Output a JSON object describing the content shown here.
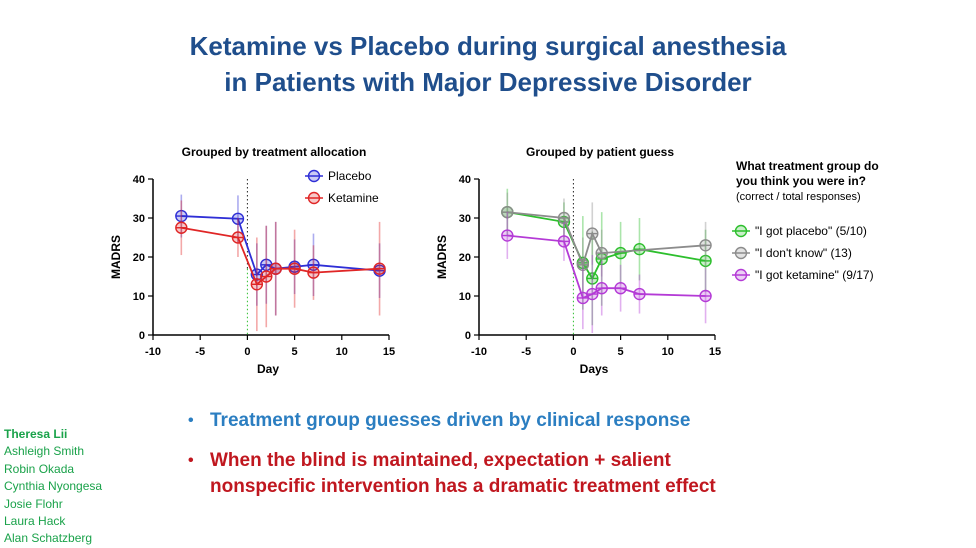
{
  "slide": {
    "title_line1": "Ketamine vs Placebo during surgical anesthesia",
    "title_line2": "in Patients with Major Depressive Disorder",
    "colors": {
      "title": "#1f4e8c",
      "bullet1": "#2b7ec1",
      "bullet2": "#c0171f",
      "authors": "#1aa24a"
    }
  },
  "bullets": [
    {
      "text": "Treatment group guesses driven by clinical response"
    },
    {
      "text_line1": "When the blind is maintained, expectation + salient",
      "text_line2": "nonspecific intervention has a dramatic treatment effect"
    }
  ],
  "authors": [
    "Theresa Lii",
    "Ashleigh Smith",
    "Robin Okada",
    "Cynthia Nyongesa",
    "Josie Flohr",
    "Laura Hack",
    "Alan Schatzberg"
  ],
  "chart_data": [
    {
      "type": "line",
      "title": "Grouped by treatment allocation",
      "xlabel": "Day",
      "ylabel": "MADRS",
      "xlim": [
        -10,
        15
      ],
      "ylim": [
        0,
        40
      ],
      "xticks": [
        -10,
        -5,
        0,
        5,
        10,
        15
      ],
      "yticks": [
        0,
        10,
        20,
        30,
        40
      ],
      "reference_line_x": 0,
      "legend_title": [],
      "legend_position": "top-right",
      "series": [
        {
          "name": "Placebo",
          "color": "#2f2fd6",
          "x": [
            -7,
            -1,
            1,
            2,
            3,
            5,
            7,
            14
          ],
          "y": [
            30.5,
            29.8,
            15.5,
            18,
            17,
            17.5,
            18,
            16.5
          ],
          "err": [
            5.5,
            6,
            8,
            10,
            12,
            7,
            8,
            7
          ]
        },
        {
          "name": "Ketamine",
          "color": "#e02626",
          "x": [
            -7,
            -1,
            1,
            2,
            3,
            5,
            7,
            14
          ],
          "y": [
            27.5,
            25,
            13,
            15,
            17,
            17,
            16,
            17
          ],
          "err": [
            7,
            5,
            12,
            13,
            12,
            10,
            7,
            12
          ]
        }
      ]
    },
    {
      "type": "line",
      "title": "Grouped by patient guess",
      "xlabel": "Days",
      "ylabel": "MADRS",
      "xlim": [
        -10,
        15
      ],
      "ylim": [
        0,
        40
      ],
      "xticks": [
        -10,
        -5,
        0,
        5,
        10,
        15
      ],
      "yticks": [
        0,
        10,
        20,
        30,
        40
      ],
      "reference_line_x": 0,
      "legend_title": [
        "What treatment group do",
        "you think you were in?",
        "(correct / total responses)"
      ],
      "legend_position": "right",
      "series": [
        {
          "name": "\"I got placebo\" (5/10)",
          "color": "#2dbf2d",
          "x": [
            -7,
            -1,
            1,
            2,
            3,
            5,
            7,
            14
          ],
          "y": [
            31.5,
            29,
            18.5,
            14.5,
            19.5,
            21,
            22,
            19
          ],
          "err": [
            6,
            5,
            12,
            12,
            12,
            8,
            8,
            8
          ]
        },
        {
          "name": "\"I don't know\" (13)",
          "color": "#8c8c8c",
          "x": [
            -7,
            -1,
            1,
            2,
            3,
            14
          ],
          "y": [
            31.5,
            30,
            18,
            26,
            21,
            23
          ],
          "err": [
            5,
            5,
            7,
            8,
            6,
            6
          ]
        },
        {
          "name": "\"I got ketamine\" (9/17)",
          "color": "#b43ad6",
          "x": [
            -7,
            -1,
            1,
            2,
            3,
            5,
            7,
            14
          ],
          "y": [
            25.5,
            24,
            9.5,
            10.5,
            12,
            12,
            10.5,
            10
          ],
          "err": [
            6,
            5,
            8,
            10,
            7,
            6,
            5,
            7
          ]
        }
      ]
    }
  ]
}
